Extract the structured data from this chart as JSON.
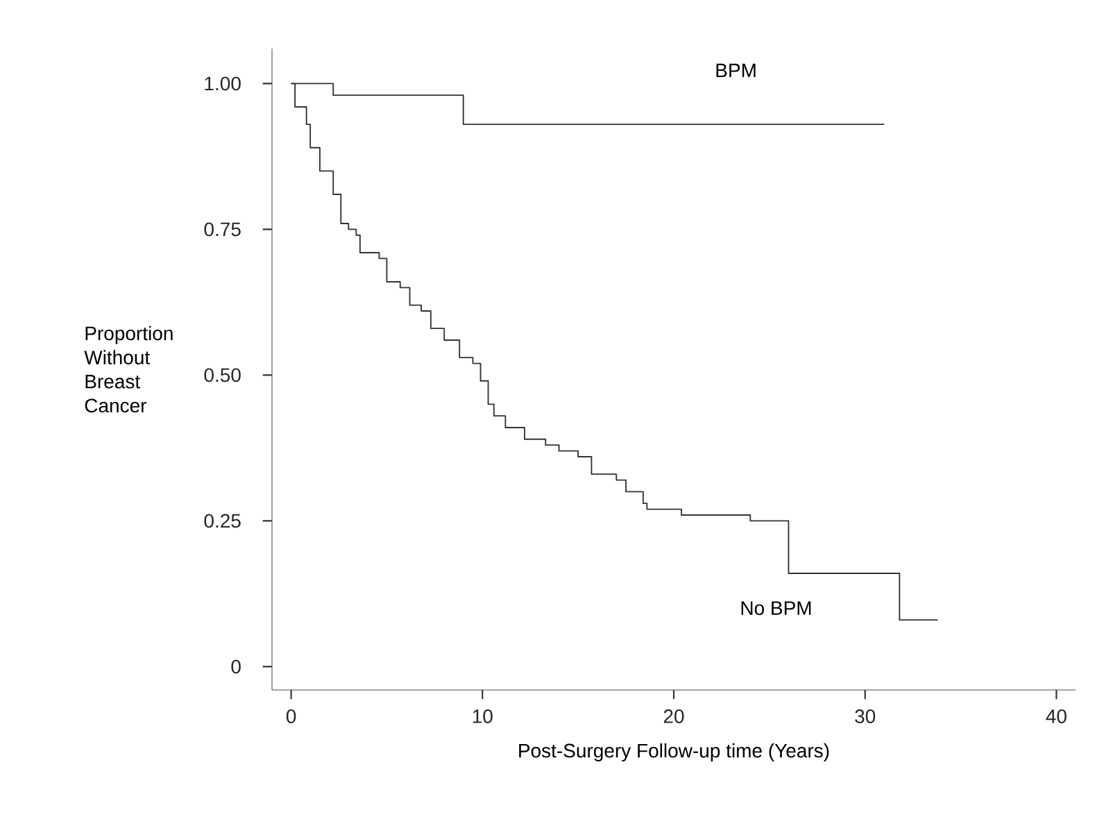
{
  "chart_data": {
    "type": "step",
    "xlabel": "Post-Surgery Follow-up time (Years)",
    "ylabel": "Proportion Without Breast Cancer",
    "xlim": [
      -1,
      41
    ],
    "ylim": [
      -0.04,
      1.06
    ],
    "xticks": [
      0,
      10,
      20,
      30,
      40
    ],
    "yticks": [
      0,
      {
        "value": 0.25,
        "label": "0.25"
      },
      {
        "value": 0.5,
        "label": "0.50"
      },
      {
        "value": 0.75,
        "label": "0.75"
      },
      {
        "value": 1,
        "label": "1.00"
      }
    ],
    "grid": false,
    "series": [
      {
        "name": "BPM",
        "color": "#333333",
        "x": [
          0,
          2.2,
          9.0,
          31
        ],
        "values": [
          1,
          0.98,
          0.93,
          0.93
        ]
      },
      {
        "name": "No BPM",
        "color": "#333333",
        "x": [
          0,
          0.2,
          0.8,
          1.0,
          1.5,
          2.2,
          2.6,
          3.0,
          3.4,
          3.6,
          4.6,
          5.0,
          5.7,
          6.2,
          6.8,
          7.3,
          8.0,
          8.8,
          9.5,
          9.9,
          10.3,
          10.6,
          11.2,
          12.2,
          13.3,
          14.0,
          15.0,
          15.7,
          17.0,
          17.5,
          18.4,
          18.6,
          20.4,
          24.0,
          26.0,
          31.8,
          33.8
        ],
        "values": [
          1,
          0.96,
          0.93,
          0.89,
          0.85,
          0.81,
          0.76,
          0.75,
          0.74,
          0.71,
          0.7,
          0.66,
          0.65,
          0.62,
          0.61,
          0.58,
          0.56,
          0.53,
          0.52,
          0.49,
          0.45,
          0.43,
          0.41,
          0.39,
          0.38,
          0.37,
          0.36,
          0.33,
          0.32,
          0.3,
          0.28,
          0.27,
          0.26,
          0.25,
          0.16,
          0.08,
          0.08
        ]
      }
    ]
  }
}
